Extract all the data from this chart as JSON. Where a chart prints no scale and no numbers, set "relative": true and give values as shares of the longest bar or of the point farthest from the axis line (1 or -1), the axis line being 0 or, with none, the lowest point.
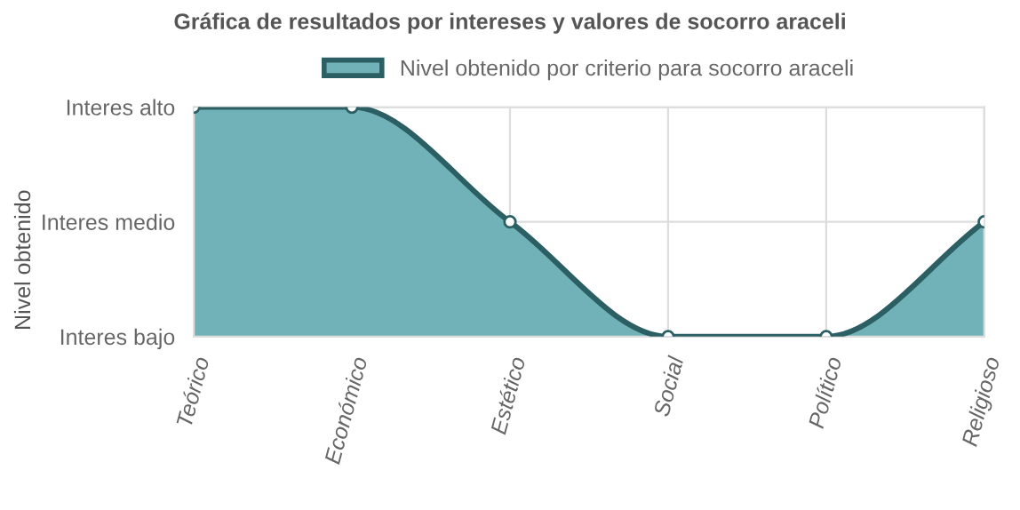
{
  "chart_data": {
    "type": "area",
    "title": "Gráfica de resultados por intereses y valores de socorro araceli",
    "annotations": [
      "Nivel obtenido"
    ],
    "categories": [
      "Teórico",
      "Económico",
      "Estético",
      "Social",
      "Político",
      "Religioso"
    ],
    "y_categories": [
      "Interes alto",
      "Interes medio",
      "Interes bajo"
    ],
    "relative": true,
    "series": [
      {
        "name": "Nivel obtenido por criterio para socorro araceli",
        "color": "#70b2b7",
        "values": [
          1,
          1,
          0.5,
          0,
          0,
          0.5
        ]
      }
    ],
    "grid": true,
    "legend": "top",
    "marker": "circle",
    "line_style": "solid"
  }
}
